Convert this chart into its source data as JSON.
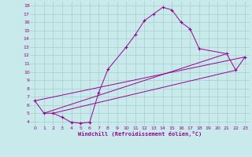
{
  "xlabel": "Windchill (Refroidissement éolien,°C)",
  "bg_color": "#c8eaea",
  "line_color": "#990099",
  "grid_color": "#aacccc",
  "xlim": [
    -0.5,
    23.5
  ],
  "ylim": [
    3.5,
    18.5
  ],
  "xticks": [
    0,
    1,
    2,
    3,
    4,
    5,
    6,
    7,
    8,
    9,
    10,
    11,
    12,
    13,
    14,
    15,
    16,
    17,
    18,
    19,
    20,
    21,
    22,
    23
  ],
  "yticks": [
    4,
    5,
    6,
    7,
    8,
    9,
    10,
    11,
    12,
    13,
    14,
    15,
    16,
    17,
    18
  ],
  "main_x": [
    0,
    1,
    2,
    3,
    4,
    5,
    6,
    7,
    8,
    10,
    11,
    12,
    13,
    14,
    15,
    16,
    17,
    18,
    21,
    22,
    23
  ],
  "main_y": [
    6.5,
    5.0,
    5.0,
    4.5,
    3.9,
    3.8,
    3.9,
    7.5,
    10.3,
    13.0,
    14.5,
    16.2,
    17.0,
    17.8,
    17.5,
    16.0,
    15.2,
    12.8,
    12.2,
    10.2,
    11.8
  ],
  "line1_x": [
    0,
    23
  ],
  "line1_y": [
    6.5,
    11.8
  ],
  "line2_x": [
    1,
    21
  ],
  "line2_y": [
    5.0,
    12.2
  ],
  "line3_x": [
    2,
    22
  ],
  "line3_y": [
    5.0,
    10.2
  ]
}
